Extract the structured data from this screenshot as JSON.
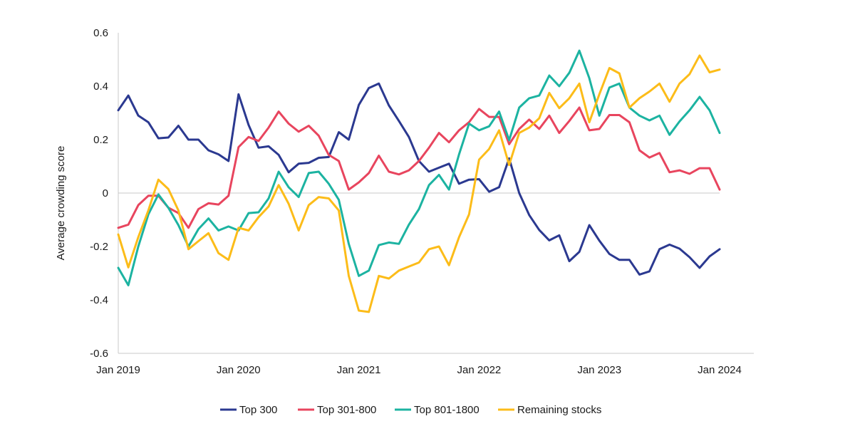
{
  "chart_data": {
    "type": "line",
    "title": "",
    "xlabel": "",
    "ylabel": "Average crowding score",
    "ylim": [
      -0.6,
      0.6
    ],
    "yticks": [
      {
        "value": -0.6,
        "label": "-0.6"
      },
      {
        "value": -0.4,
        "label": "-0.4"
      },
      {
        "value": -0.2,
        "label": "-0.2"
      },
      {
        "value": 0,
        "label": "0"
      },
      {
        "value": 0.2,
        "label": "0.2"
      },
      {
        "value": 0.4,
        "label": "0.4"
      },
      {
        "value": 0.6,
        "label": "0.6"
      }
    ],
    "xticks": [
      {
        "index": 0,
        "label": "Jan 2019"
      },
      {
        "index": 12,
        "label": "Jan 2020"
      },
      {
        "index": 24,
        "label": "Jan 2021"
      },
      {
        "index": 36,
        "label": "Jan 2022"
      },
      {
        "index": 48,
        "label": "Jan 2023"
      },
      {
        "index": 60,
        "label": "Jan 2024"
      }
    ],
    "x": [
      "2019-01",
      "2019-02",
      "2019-03",
      "2019-04",
      "2019-05",
      "2019-06",
      "2019-07",
      "2019-08",
      "2019-09",
      "2019-10",
      "2019-11",
      "2019-12",
      "2020-01",
      "2020-02",
      "2020-03",
      "2020-04",
      "2020-05",
      "2020-06",
      "2020-07",
      "2020-08",
      "2020-09",
      "2020-10",
      "2020-11",
      "2020-12",
      "2021-01",
      "2021-02",
      "2021-03",
      "2021-04",
      "2021-05",
      "2021-06",
      "2021-07",
      "2021-08",
      "2021-09",
      "2021-10",
      "2021-11",
      "2021-12",
      "2022-01",
      "2022-02",
      "2022-03",
      "2022-04",
      "2022-05",
      "2022-06",
      "2022-07",
      "2022-08",
      "2022-09",
      "2022-10",
      "2022-11",
      "2022-12",
      "2023-01",
      "2023-02",
      "2023-03",
      "2023-04",
      "2023-05",
      "2023-06",
      "2023-07",
      "2023-08",
      "2023-09",
      "2023-10",
      "2023-11",
      "2023-12",
      "2024-01"
    ],
    "grid": false,
    "legend_position": "bottom",
    "series": [
      {
        "name": "Top 300",
        "color": "#2b3990",
        "values": [
          0.31,
          0.365,
          0.29,
          0.265,
          0.205,
          0.208,
          0.252,
          0.2,
          0.2,
          0.16,
          0.145,
          0.12,
          0.37,
          0.255,
          0.17,
          0.175,
          0.143,
          0.078,
          0.11,
          0.113,
          0.132,
          0.135,
          0.228,
          0.2,
          0.33,
          0.393,
          0.41,
          0.328,
          0.27,
          0.21,
          0.12,
          0.08,
          0.095,
          0.11,
          0.035,
          0.05,
          0.052,
          0.005,
          0.022,
          0.13,
          0.0,
          -0.082,
          -0.138,
          -0.177,
          -0.158,
          -0.255,
          -0.22,
          -0.12,
          -0.178,
          -0.228,
          -0.25,
          -0.25,
          -0.305,
          -0.293,
          -0.21,
          -0.193,
          -0.208,
          -0.24,
          -0.28,
          -0.237,
          -0.21
        ]
      },
      {
        "name": "Top 301-800",
        "color": "#e8455e",
        "values": [
          -0.13,
          -0.118,
          -0.045,
          -0.01,
          -0.01,
          -0.055,
          -0.075,
          -0.13,
          -0.06,
          -0.038,
          -0.043,
          -0.01,
          0.172,
          0.21,
          0.195,
          0.245,
          0.305,
          0.26,
          0.23,
          0.252,
          0.215,
          0.143,
          0.12,
          0.013,
          0.04,
          0.075,
          0.14,
          0.08,
          0.07,
          0.085,
          0.12,
          0.17,
          0.225,
          0.19,
          0.235,
          0.265,
          0.315,
          0.285,
          0.285,
          0.183,
          0.24,
          0.275,
          0.24,
          0.29,
          0.225,
          0.27,
          0.32,
          0.235,
          0.24,
          0.292,
          0.292,
          0.265,
          0.16,
          0.133,
          0.15,
          0.078,
          0.085,
          0.072,
          0.093,
          0.093,
          0.013
        ]
      },
      {
        "name": "Top 801-1800",
        "color": "#1cb3a1",
        "values": [
          -0.28,
          -0.345,
          -0.2,
          -0.08,
          -0.005,
          -0.055,
          -0.12,
          -0.2,
          -0.135,
          -0.095,
          -0.14,
          -0.125,
          -0.14,
          -0.075,
          -0.072,
          -0.02,
          0.08,
          0.022,
          -0.015,
          0.075,
          0.08,
          0.035,
          -0.025,
          -0.19,
          -0.31,
          -0.29,
          -0.195,
          -0.185,
          -0.19,
          -0.118,
          -0.06,
          0.03,
          0.068,
          0.013,
          0.145,
          0.26,
          0.235,
          0.25,
          0.305,
          0.198,
          0.32,
          0.355,
          0.365,
          0.44,
          0.4,
          0.45,
          0.533,
          0.43,
          0.29,
          0.395,
          0.41,
          0.32,
          0.29,
          0.272,
          0.29,
          0.218,
          0.268,
          0.31,
          0.36,
          0.31,
          0.225
        ]
      },
      {
        "name": "Remaining stocks",
        "color": "#fcbc19",
        "values": [
          -0.155,
          -0.278,
          -0.165,
          -0.065,
          0.05,
          0.015,
          -0.065,
          -0.21,
          -0.18,
          -0.15,
          -0.225,
          -0.25,
          -0.13,
          -0.14,
          -0.09,
          -0.05,
          0.03,
          -0.04,
          -0.14,
          -0.045,
          -0.015,
          -0.02,
          -0.065,
          -0.31,
          -0.44,
          -0.445,
          -0.31,
          -0.32,
          -0.29,
          -0.275,
          -0.26,
          -0.21,
          -0.2,
          -0.27,
          -0.165,
          -0.08,
          0.125,
          0.165,
          0.235,
          0.105,
          0.225,
          0.245,
          0.28,
          0.375,
          0.318,
          0.355,
          0.41,
          0.265,
          0.37,
          0.468,
          0.448,
          0.32,
          0.355,
          0.38,
          0.41,
          0.342,
          0.41,
          0.445,
          0.515,
          0.452,
          0.462
        ]
      }
    ]
  }
}
